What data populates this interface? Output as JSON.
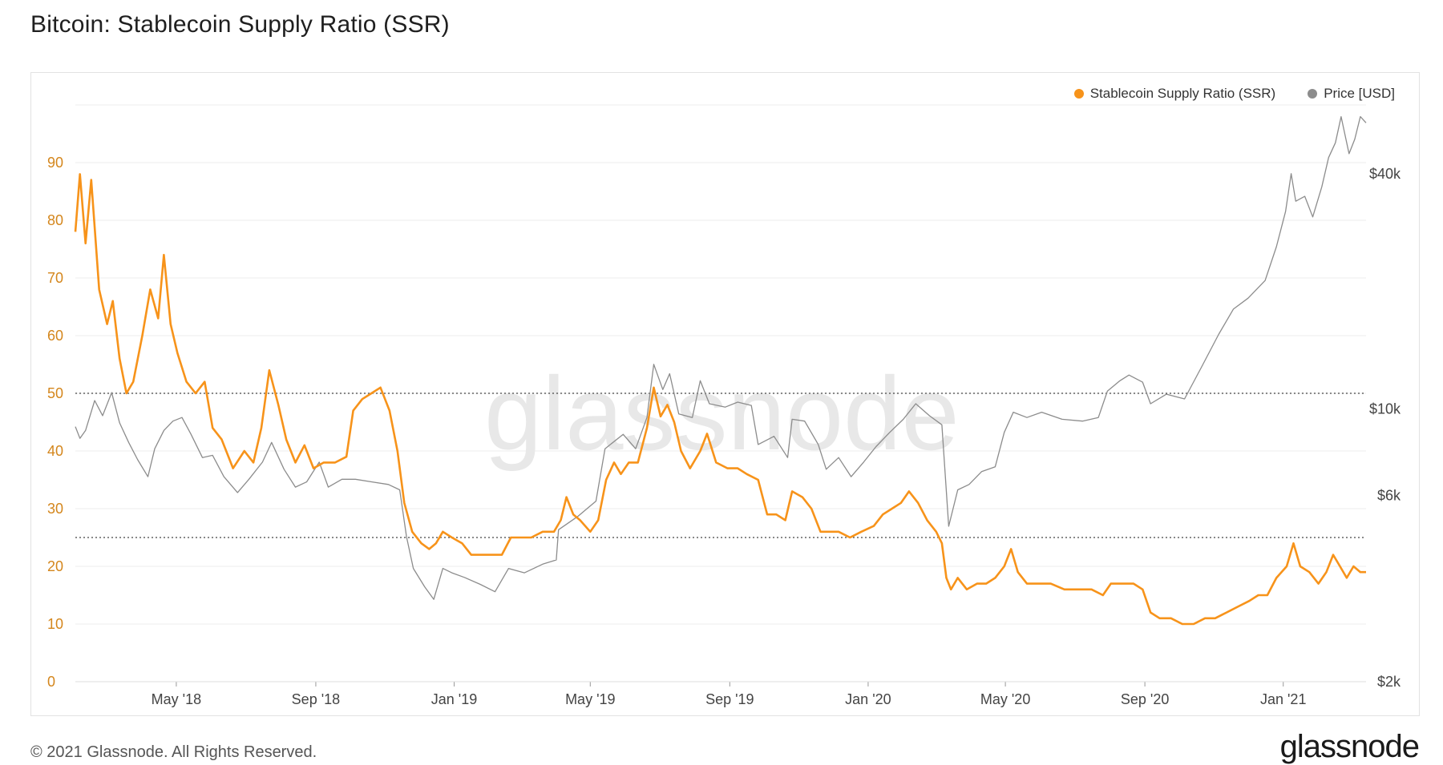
{
  "page": {
    "title": "Bitcoin: Stablecoin Supply Ratio (SSR)",
    "copyright": "© 2021 Glassnode. All Rights Reserved.",
    "logo_text": "glassnode",
    "watermark_text": "glassnode"
  },
  "colors": {
    "ssr": "#f7931a",
    "price": "#8c8c8c",
    "left_axis_text": "#d4861c",
    "grid": "#ececec",
    "reference_line": "#444444"
  },
  "chart_data": {
    "type": "line",
    "title": "Bitcoin: Stablecoin Supply Ratio (SSR)",
    "x_range": [
      "2018-02-01",
      "2021-03-15"
    ],
    "x_ticks": [
      {
        "date": "2018-05-01",
        "label": "May '18"
      },
      {
        "date": "2018-09-01",
        "label": "Sep '18"
      },
      {
        "date": "2019-01-01",
        "label": "Jan '19"
      },
      {
        "date": "2019-05-01",
        "label": "May '19"
      },
      {
        "date": "2019-09-01",
        "label": "Sep '19"
      },
      {
        "date": "2020-01-01",
        "label": "Jan '20"
      },
      {
        "date": "2020-05-01",
        "label": "May '20"
      },
      {
        "date": "2020-09-01",
        "label": "Sep '20"
      },
      {
        "date": "2021-01-01",
        "label": "Jan '21"
      }
    ],
    "y_left": {
      "min": 0,
      "max": 100,
      "ticks": [
        0,
        10,
        20,
        30,
        40,
        50,
        60,
        70,
        80,
        90
      ]
    },
    "y_right": {
      "scale": "log",
      "min": 2000,
      "max": 60000,
      "ticks": [
        {
          "value": 2000,
          "label": "$2k"
        },
        {
          "value": 6000,
          "label": "$6k"
        },
        {
          "value": 10000,
          "label": "$10k"
        },
        {
          "value": 40000,
          "label": "$40k"
        }
      ]
    },
    "reference_lines_left": [
      50,
      25
    ],
    "grid": true,
    "legend_position": "top-right",
    "series": [
      {
        "name": "Stablecoin Supply Ratio (SSR)",
        "axis": "left",
        "color": "#f7931a",
        "points": [
          [
            "2018-02-01",
            78
          ],
          [
            "2018-02-05",
            88
          ],
          [
            "2018-02-10",
            76
          ],
          [
            "2018-02-15",
            87
          ],
          [
            "2018-02-22",
            68
          ],
          [
            "2018-03-01",
            62
          ],
          [
            "2018-03-06",
            66
          ],
          [
            "2018-03-12",
            56
          ],
          [
            "2018-03-18",
            50
          ],
          [
            "2018-03-24",
            52
          ],
          [
            "2018-04-01",
            60
          ],
          [
            "2018-04-08",
            68
          ],
          [
            "2018-04-15",
            63
          ],
          [
            "2018-04-20",
            74
          ],
          [
            "2018-04-26",
            62
          ],
          [
            "2018-05-02",
            57
          ],
          [
            "2018-05-10",
            52
          ],
          [
            "2018-05-18",
            50
          ],
          [
            "2018-05-26",
            52
          ],
          [
            "2018-06-02",
            44
          ],
          [
            "2018-06-10",
            42
          ],
          [
            "2018-06-20",
            37
          ],
          [
            "2018-06-30",
            40
          ],
          [
            "2018-07-08",
            38
          ],
          [
            "2018-07-15",
            44
          ],
          [
            "2018-07-22",
            54
          ],
          [
            "2018-07-30",
            48
          ],
          [
            "2018-08-06",
            42
          ],
          [
            "2018-08-14",
            38
          ],
          [
            "2018-08-22",
            41
          ],
          [
            "2018-08-30",
            37
          ],
          [
            "2018-09-08",
            38
          ],
          [
            "2018-09-18",
            38
          ],
          [
            "2018-09-28",
            39
          ],
          [
            "2018-10-04",
            47
          ],
          [
            "2018-10-12",
            49
          ],
          [
            "2018-10-20",
            50
          ],
          [
            "2018-10-28",
            51
          ],
          [
            "2018-11-05",
            47
          ],
          [
            "2018-11-12",
            40
          ],
          [
            "2018-11-18",
            31
          ],
          [
            "2018-11-25",
            26
          ],
          [
            "2018-12-03",
            24
          ],
          [
            "2018-12-10",
            23
          ],
          [
            "2018-12-16",
            24
          ],
          [
            "2018-12-22",
            26
          ],
          [
            "2018-12-30",
            25
          ],
          [
            "2019-01-08",
            24
          ],
          [
            "2019-01-16",
            22
          ],
          [
            "2019-01-26",
            22
          ],
          [
            "2019-02-04",
            22
          ],
          [
            "2019-02-12",
            22
          ],
          [
            "2019-02-20",
            25
          ],
          [
            "2019-03-01",
            25
          ],
          [
            "2019-03-10",
            25
          ],
          [
            "2019-03-20",
            26
          ],
          [
            "2019-03-30",
            26
          ],
          [
            "2019-04-05",
            28
          ],
          [
            "2019-04-10",
            32
          ],
          [
            "2019-04-16",
            29
          ],
          [
            "2019-04-22",
            28
          ],
          [
            "2019-05-01",
            26
          ],
          [
            "2019-05-08",
            28
          ],
          [
            "2019-05-15",
            35
          ],
          [
            "2019-05-22",
            38
          ],
          [
            "2019-05-28",
            36
          ],
          [
            "2019-06-04",
            38
          ],
          [
            "2019-06-12",
            38
          ],
          [
            "2019-06-20",
            44
          ],
          [
            "2019-06-26",
            51
          ],
          [
            "2019-07-02",
            46
          ],
          [
            "2019-07-08",
            48
          ],
          [
            "2019-07-14",
            45
          ],
          [
            "2019-07-20",
            40
          ],
          [
            "2019-07-28",
            37
          ],
          [
            "2019-08-06",
            40
          ],
          [
            "2019-08-12",
            43
          ],
          [
            "2019-08-20",
            38
          ],
          [
            "2019-08-30",
            37
          ],
          [
            "2019-09-08",
            37
          ],
          [
            "2019-09-16",
            36
          ],
          [
            "2019-09-26",
            35
          ],
          [
            "2019-10-04",
            29
          ],
          [
            "2019-10-12",
            29
          ],
          [
            "2019-10-20",
            28
          ],
          [
            "2019-10-26",
            33
          ],
          [
            "2019-11-04",
            32
          ],
          [
            "2019-11-12",
            30
          ],
          [
            "2019-11-20",
            26
          ],
          [
            "2019-11-28",
            26
          ],
          [
            "2019-12-06",
            26
          ],
          [
            "2019-12-16",
            25
          ],
          [
            "2019-12-26",
            26
          ],
          [
            "2020-01-06",
            27
          ],
          [
            "2020-01-14",
            29
          ],
          [
            "2020-01-22",
            30
          ],
          [
            "2020-01-30",
            31
          ],
          [
            "2020-02-06",
            33
          ],
          [
            "2020-02-14",
            31
          ],
          [
            "2020-02-22",
            28
          ],
          [
            "2020-03-01",
            26
          ],
          [
            "2020-03-06",
            24
          ],
          [
            "2020-03-10",
            18
          ],
          [
            "2020-03-14",
            16
          ],
          [
            "2020-03-20",
            18
          ],
          [
            "2020-03-28",
            16
          ],
          [
            "2020-04-06",
            17
          ],
          [
            "2020-04-14",
            17
          ],
          [
            "2020-04-22",
            18
          ],
          [
            "2020-04-30",
            20
          ],
          [
            "2020-05-06",
            23
          ],
          [
            "2020-05-12",
            19
          ],
          [
            "2020-05-20",
            17
          ],
          [
            "2020-05-30",
            17
          ],
          [
            "2020-06-10",
            17
          ],
          [
            "2020-06-22",
            16
          ],
          [
            "2020-07-04",
            16
          ],
          [
            "2020-07-16",
            16
          ],
          [
            "2020-07-26",
            15
          ],
          [
            "2020-08-02",
            17
          ],
          [
            "2020-08-12",
            17
          ],
          [
            "2020-08-22",
            17
          ],
          [
            "2020-08-30",
            16
          ],
          [
            "2020-09-06",
            12
          ],
          [
            "2020-09-14",
            11
          ],
          [
            "2020-09-24",
            11
          ],
          [
            "2020-10-04",
            10
          ],
          [
            "2020-10-14",
            10
          ],
          [
            "2020-10-24",
            11
          ],
          [
            "2020-11-02",
            11
          ],
          [
            "2020-11-12",
            12
          ],
          [
            "2020-11-22",
            13
          ],
          [
            "2020-12-02",
            14
          ],
          [
            "2020-12-10",
            15
          ],
          [
            "2020-12-18",
            15
          ],
          [
            "2020-12-26",
            18
          ],
          [
            "2021-01-04",
            20
          ],
          [
            "2021-01-10",
            24
          ],
          [
            "2021-01-16",
            20
          ],
          [
            "2021-01-24",
            19
          ],
          [
            "2021-02-01",
            17
          ],
          [
            "2021-02-08",
            19
          ],
          [
            "2021-02-14",
            22
          ],
          [
            "2021-02-20",
            20
          ],
          [
            "2021-02-26",
            18
          ],
          [
            "2021-03-04",
            20
          ],
          [
            "2021-03-10",
            19
          ],
          [
            "2021-03-15",
            19
          ]
        ]
      },
      {
        "name": "Price [USD]",
        "axis": "right",
        "color": "#8c8c8c",
        "points": [
          [
            "2018-02-01",
            9000
          ],
          [
            "2018-02-05",
            8400
          ],
          [
            "2018-02-10",
            8800
          ],
          [
            "2018-02-18",
            10500
          ],
          [
            "2018-02-25",
            9600
          ],
          [
            "2018-03-05",
            11000
          ],
          [
            "2018-03-12",
            9200
          ],
          [
            "2018-03-20",
            8200
          ],
          [
            "2018-03-28",
            7400
          ],
          [
            "2018-04-06",
            6700
          ],
          [
            "2018-04-12",
            7900
          ],
          [
            "2018-04-20",
            8800
          ],
          [
            "2018-04-28",
            9300
          ],
          [
            "2018-05-06",
            9500
          ],
          [
            "2018-05-14",
            8600
          ],
          [
            "2018-05-24",
            7500
          ],
          [
            "2018-06-02",
            7600
          ],
          [
            "2018-06-12",
            6700
          ],
          [
            "2018-06-24",
            6100
          ],
          [
            "2018-07-04",
            6600
          ],
          [
            "2018-07-16",
            7300
          ],
          [
            "2018-07-24",
            8200
          ],
          [
            "2018-08-04",
            7000
          ],
          [
            "2018-08-14",
            6300
          ],
          [
            "2018-08-24",
            6500
          ],
          [
            "2018-09-04",
            7300
          ],
          [
            "2018-09-12",
            6300
          ],
          [
            "2018-09-24",
            6600
          ],
          [
            "2018-10-06",
            6600
          ],
          [
            "2018-10-20",
            6500
          ],
          [
            "2018-11-04",
            6400
          ],
          [
            "2018-11-14",
            6200
          ],
          [
            "2018-11-20",
            4700
          ],
          [
            "2018-11-26",
            3900
          ],
          [
            "2018-12-06",
            3500
          ],
          [
            "2018-12-14",
            3250
          ],
          [
            "2018-12-22",
            3900
          ],
          [
            "2018-12-30",
            3800
          ],
          [
            "2019-01-10",
            3700
          ],
          [
            "2019-01-24",
            3550
          ],
          [
            "2019-02-06",
            3400
          ],
          [
            "2019-02-18",
            3900
          ],
          [
            "2019-03-04",
            3800
          ],
          [
            "2019-03-20",
            4000
          ],
          [
            "2019-04-01",
            4100
          ],
          [
            "2019-04-03",
            4900
          ],
          [
            "2019-04-20",
            5300
          ],
          [
            "2019-05-06",
            5800
          ],
          [
            "2019-05-14",
            7900
          ],
          [
            "2019-05-30",
            8600
          ],
          [
            "2019-06-10",
            7900
          ],
          [
            "2019-06-20",
            9500
          ],
          [
            "2019-06-26",
            13000
          ],
          [
            "2019-07-04",
            11200
          ],
          [
            "2019-07-10",
            12300
          ],
          [
            "2019-07-18",
            9700
          ],
          [
            "2019-07-30",
            9500
          ],
          [
            "2019-08-06",
            11800
          ],
          [
            "2019-08-14",
            10300
          ],
          [
            "2019-08-28",
            10100
          ],
          [
            "2019-09-08",
            10400
          ],
          [
            "2019-09-20",
            10200
          ],
          [
            "2019-09-26",
            8100
          ],
          [
            "2019-10-10",
            8500
          ],
          [
            "2019-10-22",
            7500
          ],
          [
            "2019-10-26",
            9400
          ],
          [
            "2019-11-06",
            9300
          ],
          [
            "2019-11-18",
            8100
          ],
          [
            "2019-11-25",
            7000
          ],
          [
            "2019-12-06",
            7500
          ],
          [
            "2019-12-17",
            6700
          ],
          [
            "2019-12-28",
            7300
          ],
          [
            "2020-01-08",
            8000
          ],
          [
            "2020-01-20",
            8700
          ],
          [
            "2020-02-01",
            9400
          ],
          [
            "2020-02-12",
            10300
          ],
          [
            "2020-02-24",
            9600
          ],
          [
            "2020-03-06",
            9100
          ],
          [
            "2020-03-12",
            5000
          ],
          [
            "2020-03-20",
            6200
          ],
          [
            "2020-03-30",
            6400
          ],
          [
            "2020-04-10",
            6900
          ],
          [
            "2020-04-22",
            7100
          ],
          [
            "2020-04-30",
            8700
          ],
          [
            "2020-05-08",
            9800
          ],
          [
            "2020-05-20",
            9500
          ],
          [
            "2020-06-02",
            9800
          ],
          [
            "2020-06-20",
            9400
          ],
          [
            "2020-07-08",
            9300
          ],
          [
            "2020-07-22",
            9500
          ],
          [
            "2020-07-30",
            11100
          ],
          [
            "2020-08-10",
            11800
          ],
          [
            "2020-08-18",
            12200
          ],
          [
            "2020-08-30",
            11700
          ],
          [
            "2020-09-06",
            10300
          ],
          [
            "2020-09-20",
            10900
          ],
          [
            "2020-10-06",
            10600
          ],
          [
            "2020-10-21",
            12800
          ],
          [
            "2020-11-05",
            15500
          ],
          [
            "2020-11-18",
            18000
          ],
          [
            "2020-12-01",
            19200
          ],
          [
            "2020-12-16",
            21300
          ],
          [
            "2020-12-26",
            26000
          ],
          [
            "2021-01-03",
            32000
          ],
          [
            "2021-01-08",
            40000
          ],
          [
            "2021-01-12",
            34000
          ],
          [
            "2021-01-20",
            35000
          ],
          [
            "2021-01-27",
            31000
          ],
          [
            "2021-02-04",
            37000
          ],
          [
            "2021-02-10",
            44000
          ],
          [
            "2021-02-16",
            48000
          ],
          [
            "2021-02-21",
            56000
          ],
          [
            "2021-02-28",
            45000
          ],
          [
            "2021-03-05",
            49000
          ],
          [
            "2021-03-10",
            56000
          ],
          [
            "2021-03-15",
            54000
          ]
        ]
      }
    ]
  }
}
